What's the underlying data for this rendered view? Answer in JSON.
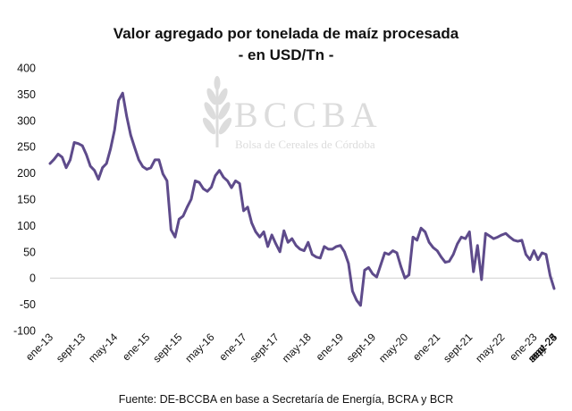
{
  "chart_data": {
    "type": "line",
    "title": "Valor agregado por tonelada de maíz procesada",
    "subtitle": "- en USD/Tn -",
    "xlabel": "",
    "ylabel": "",
    "ylim": [
      -100,
      400
    ],
    "y_ticks": [
      400,
      350,
      300,
      250,
      200,
      150,
      100,
      50,
      0,
      -50,
      -100
    ],
    "x_tick_labels": [
      "ene-13",
      "sept-13",
      "may-14",
      "ene-15",
      "sept-15",
      "may-16",
      "ene-17",
      "sept-17",
      "may-18",
      "ene-19",
      "sept-19",
      "may-20",
      "ene-21",
      "sept-21",
      "may-22",
      "ene-23",
      "sept-23",
      "may-24",
      "ene-25",
      "sept-25"
    ],
    "grid": false,
    "legend": "none",
    "line_color": "#5e4b8b",
    "series": [
      {
        "name": "Valor agregado (USD/Tn)",
        "start": "ene-13",
        "frequency": "monthly",
        "values": [
          218,
          226,
          236,
          230,
          210,
          225,
          258,
          256,
          252,
          235,
          213,
          205,
          188,
          210,
          218,
          246,
          282,
          338,
          352,
          308,
          272,
          248,
          225,
          212,
          207,
          210,
          225,
          225,
          198,
          185,
          92,
          78,
          112,
          118,
          135,
          150,
          185,
          182,
          170,
          165,
          173,
          195,
          205,
          192,
          185,
          172,
          185,
          180,
          128,
          135,
          105,
          88,
          78,
          88,
          60,
          82,
          65,
          50,
          90,
          68,
          75,
          62,
          55,
          52,
          68,
          45,
          40,
          38,
          60,
          55,
          55,
          60,
          62,
          50,
          28,
          -25,
          -42,
          -52,
          15,
          20,
          8,
          2,
          25,
          48,
          45,
          52,
          48,
          22,
          0,
          6,
          78,
          72,
          95,
          88,
          68,
          58,
          52,
          40,
          30,
          32,
          45,
          65,
          78,
          75,
          88,
          12,
          62,
          -3,
          85,
          80,
          75,
          78,
          82,
          85,
          78,
          72,
          70,
          72,
          45,
          35,
          52,
          35,
          48,
          45,
          5,
          -20
        ]
      }
    ],
    "watermark": {
      "brand": "BCCBA",
      "tagline": "Bolsa de Cereales de Córdoba"
    },
    "source": "Fuente: DE-BCCBA en base a Secretaría de Energía, BCRA y BCR"
  }
}
